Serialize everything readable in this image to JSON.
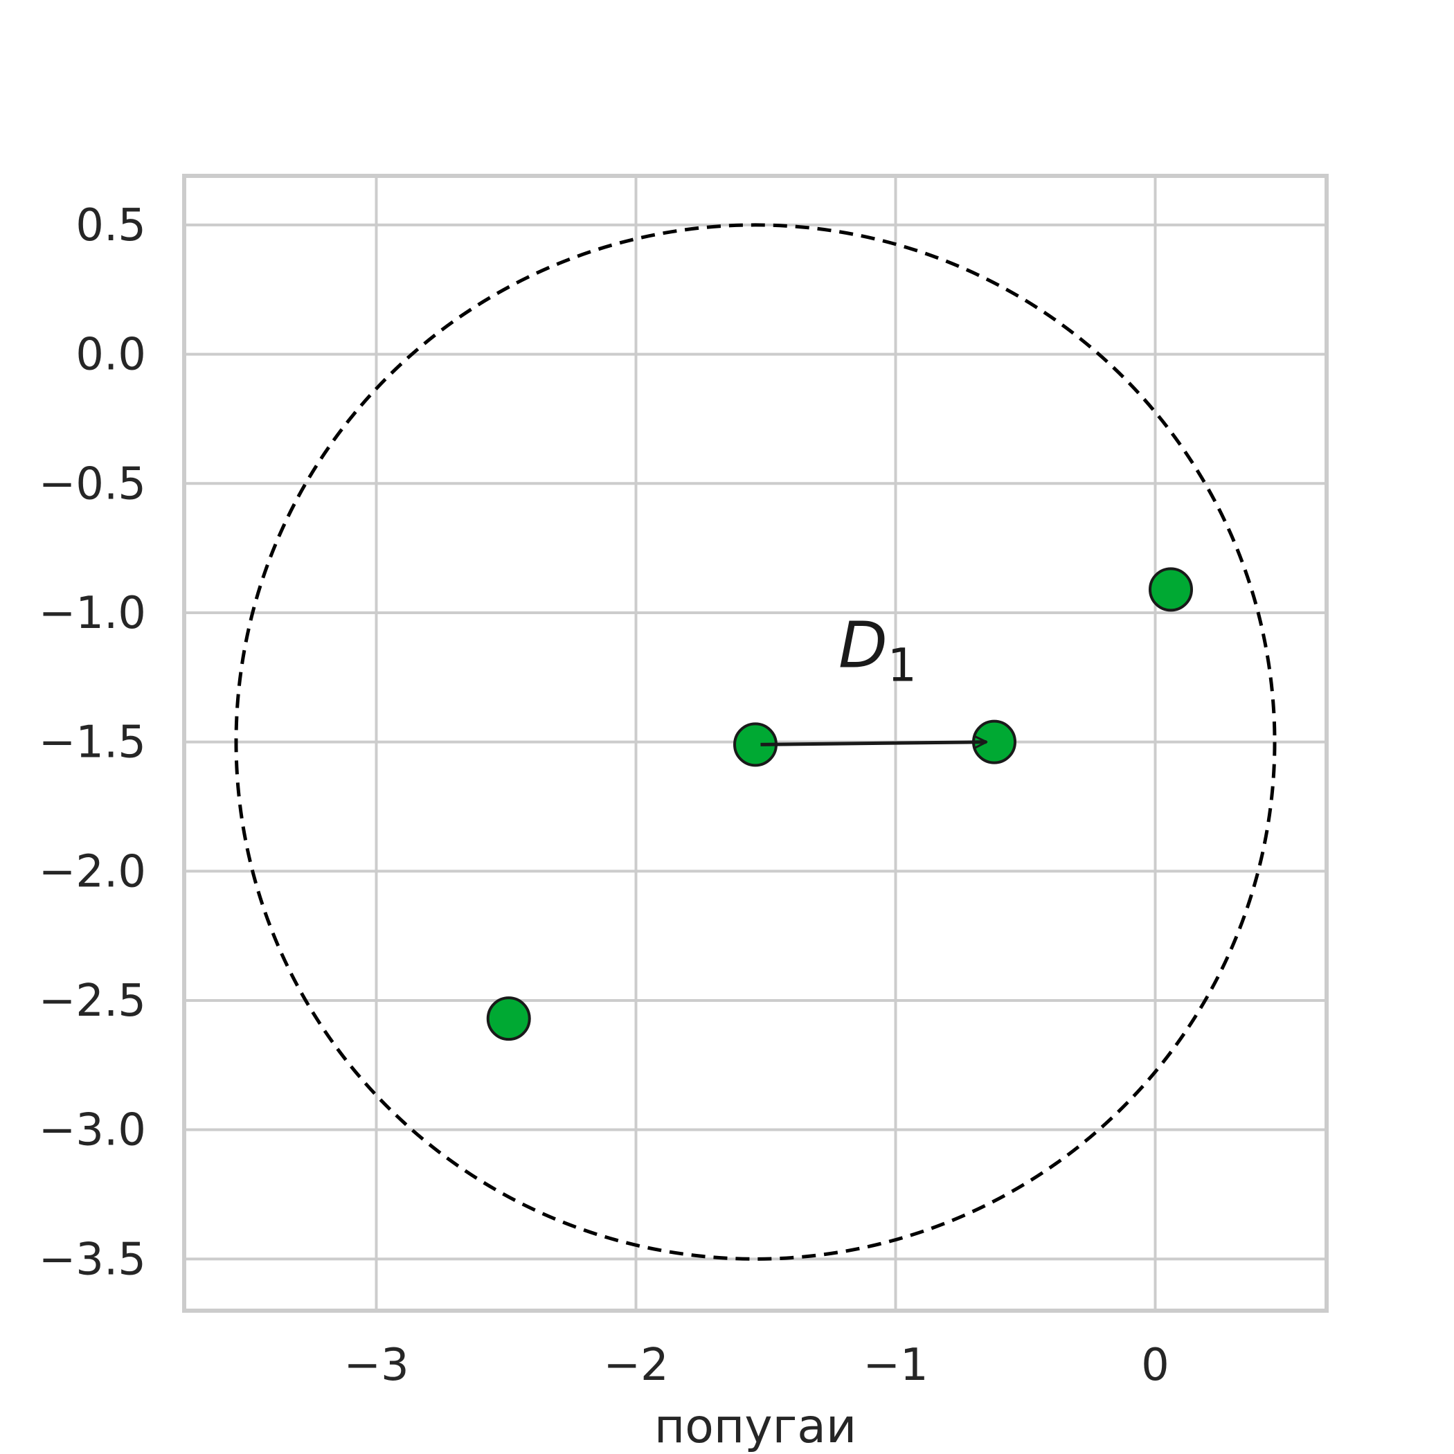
{
  "chart_data": {
    "type": "scatter",
    "xlabel": "попугаи",
    "ylabel": "",
    "xlim": [
      -3.74,
      0.66
    ],
    "ylim": [
      -3.7,
      0.69
    ],
    "xticks": [
      {
        "value": -3,
        "label": "−3"
      },
      {
        "value": -2,
        "label": "−2"
      },
      {
        "value": -1,
        "label": "−1"
      },
      {
        "value": 0,
        "label": "0"
      }
    ],
    "yticks": [
      {
        "value": 0.5,
        "label": "0.5"
      },
      {
        "value": 0.0,
        "label": "0.0"
      },
      {
        "value": -0.5,
        "label": "−0.5"
      },
      {
        "value": -1.0,
        "label": "−1.0"
      },
      {
        "value": -1.5,
        "label": "−1.5"
      },
      {
        "value": -2.0,
        "label": "−2.0"
      },
      {
        "value": -2.5,
        "label": "−2.5"
      },
      {
        "value": -3.0,
        "label": "−3.0"
      },
      {
        "value": -3.5,
        "label": "−3.5"
      }
    ],
    "grid": true,
    "points": [
      {
        "x": -1.54,
        "y": -1.51
      },
      {
        "x": -0.62,
        "y": -1.5
      },
      {
        "x": 0.06,
        "y": -0.91
      },
      {
        "x": -2.49,
        "y": -2.57
      }
    ],
    "point_color": "#00a933",
    "circle": {
      "cx": -1.54,
      "cy": -1.5,
      "r": 2.0,
      "style": "dashed",
      "color": "#000000"
    },
    "arrow": {
      "from": {
        "x": -1.52,
        "y": -1.51
      },
      "to": {
        "x": -0.65,
        "y": -1.5
      }
    },
    "annotation": {
      "x": -1.22,
      "y": -1.21,
      "text": "D",
      "subscript": "1"
    }
  }
}
